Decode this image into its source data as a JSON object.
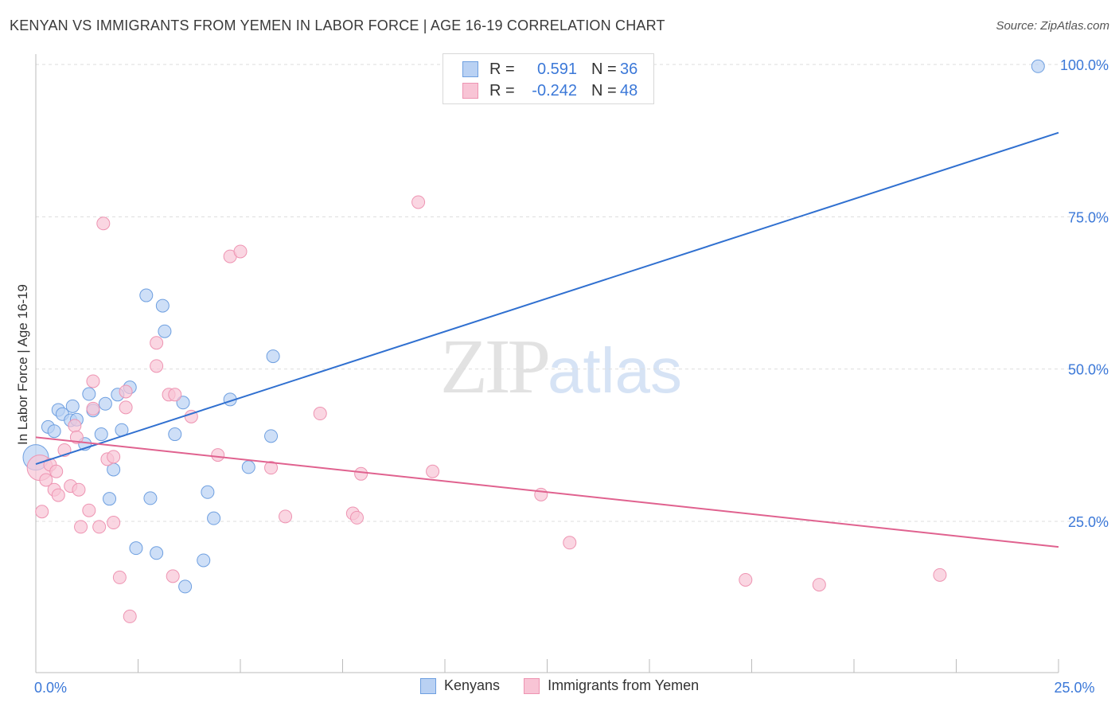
{
  "header": {
    "title": "KENYAN VS IMMIGRANTS FROM YEMEN IN LABOR FORCE | AGE 16-19 CORRELATION CHART",
    "source": "Source: ZipAtlas.com"
  },
  "watermark": {
    "zip": "ZIP",
    "atlas": "atlas"
  },
  "legend": {
    "kenyans": {
      "r_label": "R =",
      "r_value": "0.591",
      "n_label": "N =",
      "n_value": "36"
    },
    "yemen": {
      "r_label": "R =",
      "r_value": "-0.242",
      "n_label": "N =",
      "n_value": "48"
    },
    "bottom": {
      "kenyans": "Kenyans",
      "yemen": "Immigrants from Yemen"
    }
  },
  "colors": {
    "kenyans_fill": "#b9d1f3",
    "kenyans_stroke": "#6e9fe0",
    "kenyans_line": "#3070d0",
    "yemen_fill": "#f8c4d5",
    "yemen_stroke": "#ee94b2",
    "yemen_line": "#e0628f",
    "axis_label": "#3b78d8",
    "grid": "#dddddd"
  },
  "chart_data": {
    "type": "scatter",
    "title": "KENYAN VS IMMIGRANTS FROM YEMEN IN LABOR FORCE | AGE 16-19 CORRELATION CHART",
    "xlabel": "",
    "ylabel": "In Labor Force | Age 16-19",
    "xlim": [
      0,
      25
    ],
    "ylim": [
      0,
      105
    ],
    "x_tick_labels": [
      {
        "value": 0,
        "label": "0.0%"
      },
      {
        "value": 25,
        "label": "25.0%"
      }
    ],
    "y_tick_labels": [
      {
        "value": 25,
        "label": "25.0%"
      },
      {
        "value": 50,
        "label": "50.0%"
      },
      {
        "value": 75,
        "label": "75.0%"
      },
      {
        "value": 100,
        "label": "100.0%"
      }
    ],
    "series": [
      {
        "name": "Kenyans",
        "r": 0.591,
        "n": 36,
        "trend": {
          "x": [
            0.0,
            25.0
          ],
          "y": [
            34.4,
            88.8
          ]
        },
        "points": [
          {
            "x": 0.0,
            "y": 35.5,
            "big": true
          },
          {
            "x": 0.3,
            "y": 40.5
          },
          {
            "x": 0.45,
            "y": 39.8
          },
          {
            "x": 0.55,
            "y": 43.3
          },
          {
            "x": 0.65,
            "y": 42.6
          },
          {
            "x": 0.85,
            "y": 41.6
          },
          {
            "x": 0.9,
            "y": 43.9
          },
          {
            "x": 1.0,
            "y": 41.7
          },
          {
            "x": 1.2,
            "y": 37.7
          },
          {
            "x": 1.3,
            "y": 45.9
          },
          {
            "x": 1.4,
            "y": 43.2
          },
          {
            "x": 1.6,
            "y": 39.3
          },
          {
            "x": 1.7,
            "y": 44.3
          },
          {
            "x": 1.8,
            "y": 28.7
          },
          {
            "x": 1.9,
            "y": 33.5
          },
          {
            "x": 2.0,
            "y": 45.8
          },
          {
            "x": 2.1,
            "y": 40.0
          },
          {
            "x": 2.3,
            "y": 47.0
          },
          {
            "x": 2.45,
            "y": 20.6
          },
          {
            "x": 2.7,
            "y": 62.1
          },
          {
            "x": 2.8,
            "y": 28.8
          },
          {
            "x": 2.95,
            "y": 19.8
          },
          {
            "x": 3.1,
            "y": 60.4
          },
          {
            "x": 3.15,
            "y": 56.2
          },
          {
            "x": 3.4,
            "y": 39.3
          },
          {
            "x": 3.6,
            "y": 44.5
          },
          {
            "x": 3.65,
            "y": 14.3
          },
          {
            "x": 4.1,
            "y": 18.6
          },
          {
            "x": 4.2,
            "y": 29.8
          },
          {
            "x": 4.35,
            "y": 25.5
          },
          {
            "x": 4.75,
            "y": 45.0
          },
          {
            "x": 5.2,
            "y": 33.9
          },
          {
            "x": 5.75,
            "y": 39.0
          },
          {
            "x": 5.8,
            "y": 52.1
          },
          {
            "x": 24.5,
            "y": 99.7
          }
        ]
      },
      {
        "name": "Immigrants from Yemen",
        "r": -0.242,
        "n": 48,
        "trend": {
          "x": [
            0.0,
            25.0
          ],
          "y": [
            38.8,
            20.8
          ]
        },
        "points": [
          {
            "x": 0.1,
            "y": 33.8,
            "big": true
          },
          {
            "x": 0.15,
            "y": 26.6
          },
          {
            "x": 0.25,
            "y": 31.8
          },
          {
            "x": 0.35,
            "y": 34.3
          },
          {
            "x": 0.45,
            "y": 30.2
          },
          {
            "x": 0.5,
            "y": 33.2
          },
          {
            "x": 0.55,
            "y": 29.3
          },
          {
            "x": 0.7,
            "y": 36.7
          },
          {
            "x": 0.85,
            "y": 30.8
          },
          {
            "x": 0.95,
            "y": 40.7
          },
          {
            "x": 1.0,
            "y": 38.8
          },
          {
            "x": 1.1,
            "y": 24.1
          },
          {
            "x": 1.05,
            "y": 30.2
          },
          {
            "x": 1.3,
            "y": 26.8
          },
          {
            "x": 1.4,
            "y": 48.0
          },
          {
            "x": 1.4,
            "y": 43.5
          },
          {
            "x": 1.55,
            "y": 24.1
          },
          {
            "x": 1.65,
            "y": 73.9
          },
          {
            "x": 1.75,
            "y": 35.2
          },
          {
            "x": 1.9,
            "y": 35.6
          },
          {
            "x": 1.9,
            "y": 24.8
          },
          {
            "x": 2.05,
            "y": 15.8
          },
          {
            "x": 2.2,
            "y": 43.7
          },
          {
            "x": 2.2,
            "y": 46.3
          },
          {
            "x": 2.3,
            "y": 9.4
          },
          {
            "x": 2.95,
            "y": 54.3
          },
          {
            "x": 2.95,
            "y": 50.5
          },
          {
            "x": 3.25,
            "y": 45.8
          },
          {
            "x": 3.4,
            "y": 45.8
          },
          {
            "x": 3.35,
            "y": 16.0
          },
          {
            "x": 3.8,
            "y": 42.2
          },
          {
            "x": 4.45,
            "y": 35.9
          },
          {
            "x": 4.75,
            "y": 68.5
          },
          {
            "x": 5.0,
            "y": 69.3
          },
          {
            "x": 5.75,
            "y": 33.8
          },
          {
            "x": 6.1,
            "y": 25.8
          },
          {
            "x": 6.95,
            "y": 42.7
          },
          {
            "x": 7.75,
            "y": 26.3
          },
          {
            "x": 7.85,
            "y": 25.6
          },
          {
            "x": 7.95,
            "y": 32.8
          },
          {
            "x": 9.35,
            "y": 77.4
          },
          {
            "x": 9.7,
            "y": 33.2
          },
          {
            "x": 12.35,
            "y": 29.4
          },
          {
            "x": 13.05,
            "y": 21.5
          },
          {
            "x": 17.35,
            "y": 15.4
          },
          {
            "x": 19.15,
            "y": 14.6
          },
          {
            "x": 22.1,
            "y": 16.2
          }
        ]
      }
    ]
  }
}
